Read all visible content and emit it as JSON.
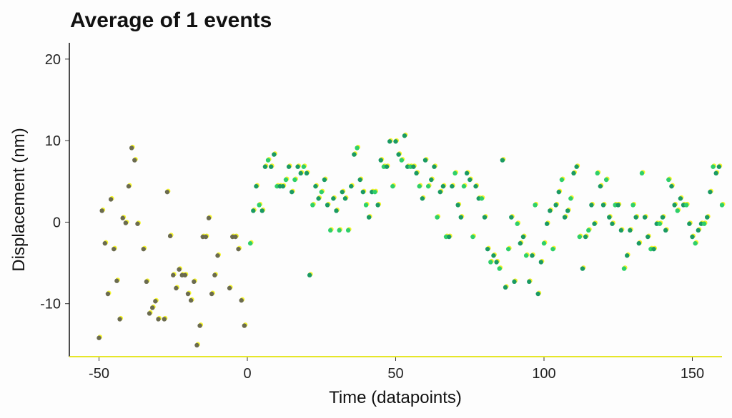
{
  "chart_data": {
    "type": "scatter",
    "title": "Average of 1 events",
    "xlabel": "Time (datapoints)",
    "ylabel": "Displacement (nm)",
    "xlim": [
      -60,
      160
    ],
    "ylim": [
      -16.5,
      22
    ],
    "x_ticks": [
      -50,
      0,
      50,
      100,
      150
    ],
    "x_tick_labels": [
      "-50",
      "0",
      "50",
      "100",
      "150"
    ],
    "y_ticks": [
      -10,
      0,
      10,
      20
    ],
    "y_tick_labels": [
      "-10",
      "0",
      "10",
      "20"
    ],
    "grid": false,
    "legend": "none",
    "colors": {
      "before_event": "#6b6b4f",
      "after_event_dark": "#1a9a63",
      "after_event_light": "#2ecf6a",
      "highlight": "#f5f52a",
      "x_axis_line": "#e6e62a",
      "y_axis_line": "#111111"
    },
    "points": [
      {
        "x": -50,
        "y": -14.2
      },
      {
        "x": -49,
        "y": 1.4
      },
      {
        "x": -48,
        "y": -2.6
      },
      {
        "x": -47,
        "y": -8.8
      },
      {
        "x": -46,
        "y": 2.8
      },
      {
        "x": -45,
        "y": -3.3
      },
      {
        "x": -44,
        "y": -7.2
      },
      {
        "x": -43,
        "y": -11.9
      },
      {
        "x": -42,
        "y": 0.5
      },
      {
        "x": -41,
        "y": -0.1
      },
      {
        "x": -40,
        "y": 4.4
      },
      {
        "x": -39,
        "y": 9.1
      },
      {
        "x": -38,
        "y": 7.6
      },
      {
        "x": -37,
        "y": -0.2
      },
      {
        "x": -35,
        "y": -3.3
      },
      {
        "x": -34,
        "y": -7.3
      },
      {
        "x": -33,
        "y": -11.2
      },
      {
        "x": -32,
        "y": -10.5
      },
      {
        "x": -31,
        "y": -9.7
      },
      {
        "x": -30,
        "y": -11.9
      },
      {
        "x": -28,
        "y": -11.9
      },
      {
        "x": -27,
        "y": 3.7
      },
      {
        "x": -26,
        "y": -1.7
      },
      {
        "x": -25,
        "y": -6.5
      },
      {
        "x": -24,
        "y": -8.1
      },
      {
        "x": -23,
        "y": -5.8
      },
      {
        "x": -22,
        "y": -6.5
      },
      {
        "x": -21,
        "y": -6.5
      },
      {
        "x": -20,
        "y": -8.8
      },
      {
        "x": -19,
        "y": -9.6
      },
      {
        "x": -18,
        "y": -7.3
      },
      {
        "x": -17,
        "y": -15.1
      },
      {
        "x": -16,
        "y": -12.7
      },
      {
        "x": -15,
        "y": -1.8
      },
      {
        "x": -14,
        "y": -1.8
      },
      {
        "x": -13,
        "y": 0.5
      },
      {
        "x": -12,
        "y": -8.8
      },
      {
        "x": -11,
        "y": -6.5
      },
      {
        "x": -10,
        "y": -4.1
      },
      {
        "x": -6,
        "y": -8.1
      },
      {
        "x": -5,
        "y": -1.8
      },
      {
        "x": -4,
        "y": -1.8
      },
      {
        "x": -3,
        "y": -3.3
      },
      {
        "x": -2,
        "y": -9.6
      },
      {
        "x": -1,
        "y": -12.7
      },
      {
        "x": 1,
        "y": -2.6
      },
      {
        "x": 2,
        "y": 1.4
      },
      {
        "x": 3,
        "y": 4.4
      },
      {
        "x": 4,
        "y": 2.1
      },
      {
        "x": 5,
        "y": 1.4
      },
      {
        "x": 6,
        "y": 6.8
      },
      {
        "x": 7,
        "y": 7.6
      },
      {
        "x": 8,
        "y": 6.8
      },
      {
        "x": 9,
        "y": 8.3
      },
      {
        "x": 10,
        "y": 4.4
      },
      {
        "x": 11,
        "y": 4.4
      },
      {
        "x": 12,
        "y": 4.4
      },
      {
        "x": 13,
        "y": 5.2
      },
      {
        "x": 14,
        "y": 6.8
      },
      {
        "x": 15,
        "y": 3.7
      },
      {
        "x": 16,
        "y": 5.2
      },
      {
        "x": 17,
        "y": 6.8
      },
      {
        "x": 18,
        "y": 6.0
      },
      {
        "x": 19,
        "y": 6.8
      },
      {
        "x": 20,
        "y": 6.0
      },
      {
        "x": 21,
        "y": -6.5
      },
      {
        "x": 22,
        "y": 2.1
      },
      {
        "x": 23,
        "y": 4.4
      },
      {
        "x": 24,
        "y": 2.9
      },
      {
        "x": 25,
        "y": 3.7
      },
      {
        "x": 26,
        "y": 5.2
      },
      {
        "x": 27,
        "y": 2.1
      },
      {
        "x": 28,
        "y": -1.0
      },
      {
        "x": 29,
        "y": 2.9
      },
      {
        "x": 30,
        "y": 1.4
      },
      {
        "x": 31,
        "y": -1.0
      },
      {
        "x": 32,
        "y": 3.7
      },
      {
        "x": 33,
        "y": 2.9
      },
      {
        "x": 34,
        "y": -1.0
      },
      {
        "x": 35,
        "y": 4.4
      },
      {
        "x": 36,
        "y": 8.3
      },
      {
        "x": 37,
        "y": 9.1
      },
      {
        "x": 38,
        "y": 5.2
      },
      {
        "x": 39,
        "y": 3.7
      },
      {
        "x": 40,
        "y": 2.1
      },
      {
        "x": 41,
        "y": 0.6
      },
      {
        "x": 42,
        "y": 3.7
      },
      {
        "x": 43,
        "y": 3.7
      },
      {
        "x": 44,
        "y": 2.1
      },
      {
        "x": 45,
        "y": 7.6
      },
      {
        "x": 46,
        "y": 6.8
      },
      {
        "x": 47,
        "y": 6.8
      },
      {
        "x": 48,
        "y": 9.9
      },
      {
        "x": 49,
        "y": 4.4
      },
      {
        "x": 50,
        "y": 9.9
      },
      {
        "x": 51,
        "y": 8.3
      },
      {
        "x": 52,
        "y": 7.6
      },
      {
        "x": 53,
        "y": 10.6
      },
      {
        "x": 54,
        "y": 6.8
      },
      {
        "x": 55,
        "y": 6.8
      },
      {
        "x": 56,
        "y": 6.8
      },
      {
        "x": 57,
        "y": 6.0
      },
      {
        "x": 58,
        "y": 4.4
      },
      {
        "x": 59,
        "y": 2.9
      },
      {
        "x": 60,
        "y": 7.6
      },
      {
        "x": 61,
        "y": 4.4
      },
      {
        "x": 62,
        "y": 5.2
      },
      {
        "x": 63,
        "y": 6.8
      },
      {
        "x": 64,
        "y": 0.6
      },
      {
        "x": 65,
        "y": 3.7
      },
      {
        "x": 66,
        "y": 4.4
      },
      {
        "x": 67,
        "y": -1.8
      },
      {
        "x": 68,
        "y": -1.8
      },
      {
        "x": 69,
        "y": 4.4
      },
      {
        "x": 70,
        "y": 6.0
      },
      {
        "x": 71,
        "y": 2.1
      },
      {
        "x": 72,
        "y": 0.6
      },
      {
        "x": 73,
        "y": 4.4
      },
      {
        "x": 74,
        "y": 6.0
      },
      {
        "x": 75,
        "y": 5.2
      },
      {
        "x": 76,
        "y": -1.8
      },
      {
        "x": 77,
        "y": 4.4
      },
      {
        "x": 78,
        "y": 2.9
      },
      {
        "x": 79,
        "y": 2.9
      },
      {
        "x": 80,
        "y": 0.6
      },
      {
        "x": 81,
        "y": -3.3
      },
      {
        "x": 82,
        "y": -4.9
      },
      {
        "x": 83,
        "y": -4.1
      },
      {
        "x": 84,
        "y": -4.9
      },
      {
        "x": 85,
        "y": -5.7
      },
      {
        "x": 86,
        "y": 7.6
      },
      {
        "x": 87,
        "y": -8.0
      },
      {
        "x": 88,
        "y": -3.3
      },
      {
        "x": 89,
        "y": 0.6
      },
      {
        "x": 90,
        "y": -7.3
      },
      {
        "x": 91,
        "y": -0.2
      },
      {
        "x": 92,
        "y": -2.6
      },
      {
        "x": 93,
        "y": -1.8
      },
      {
        "x": 94,
        "y": -4.1
      },
      {
        "x": 95,
        "y": -7.3
      },
      {
        "x": 96,
        "y": -4.1
      },
      {
        "x": 97,
        "y": 2.1
      },
      {
        "x": 98,
        "y": -8.8
      },
      {
        "x": 99,
        "y": -4.9
      },
      {
        "x": 100,
        "y": -2.6
      },
      {
        "x": 101,
        "y": -0.2
      },
      {
        "x": 102,
        "y": 1.4
      },
      {
        "x": 103,
        "y": -3.3
      },
      {
        "x": 104,
        "y": 2.1
      },
      {
        "x": 105,
        "y": 3.7
      },
      {
        "x": 106,
        "y": 5.2
      },
      {
        "x": 107,
        "y": 0.6
      },
      {
        "x": 108,
        "y": 1.4
      },
      {
        "x": 109,
        "y": 2.9
      },
      {
        "x": 110,
        "y": 6.0
      },
      {
        "x": 111,
        "y": 6.8
      },
      {
        "x": 112,
        "y": -1.8
      },
      {
        "x": 113,
        "y": -5.7
      },
      {
        "x": 114,
        "y": -1.8
      },
      {
        "x": 115,
        "y": -1.0
      },
      {
        "x": 116,
        "y": 2.1
      },
      {
        "x": 117,
        "y": -0.2
      },
      {
        "x": 118,
        "y": 6.0
      },
      {
        "x": 119,
        "y": 4.4
      },
      {
        "x": 120,
        "y": 2.1
      },
      {
        "x": 121,
        "y": 5.2
      },
      {
        "x": 122,
        "y": 0.6
      },
      {
        "x": 123,
        "y": -0.2
      },
      {
        "x": 124,
        "y": 2.1
      },
      {
        "x": 125,
        "y": 2.1
      },
      {
        "x": 126,
        "y": -1.0
      },
      {
        "x": 127,
        "y": -5.7
      },
      {
        "x": 128,
        "y": -4.1
      },
      {
        "x": 129,
        "y": -1.0
      },
      {
        "x": 130,
        "y": 2.1
      },
      {
        "x": 131,
        "y": 0.6
      },
      {
        "x": 132,
        "y": -2.6
      },
      {
        "x": 133,
        "y": 6.0
      },
      {
        "x": 134,
        "y": 0.6
      },
      {
        "x": 135,
        "y": -1.8
      },
      {
        "x": 136,
        "y": -3.3
      },
      {
        "x": 137,
        "y": -3.3
      },
      {
        "x": 138,
        "y": -0.2
      },
      {
        "x": 139,
        "y": -0.2
      },
      {
        "x": 140,
        "y": 0.6
      },
      {
        "x": 141,
        "y": -1.0
      },
      {
        "x": 142,
        "y": 5.2
      },
      {
        "x": 143,
        "y": 4.4
      },
      {
        "x": 144,
        "y": 2.1
      },
      {
        "x": 145,
        "y": 1.4
      },
      {
        "x": 146,
        "y": 2.9
      },
      {
        "x": 147,
        "y": 2.1
      },
      {
        "x": 148,
        "y": 2.1
      },
      {
        "x": 149,
        "y": -0.2
      },
      {
        "x": 150,
        "y": -1.8
      },
      {
        "x": 151,
        "y": -2.6
      },
      {
        "x": 152,
        "y": -1.0
      },
      {
        "x": 153,
        "y": -0.2
      },
      {
        "x": 154,
        "y": -0.2
      },
      {
        "x": 155,
        "y": 0.6
      },
      {
        "x": 156,
        "y": 3.7
      },
      {
        "x": 157,
        "y": 6.8
      },
      {
        "x": 158,
        "y": 6.0
      },
      {
        "x": 159,
        "y": 6.8
      },
      {
        "x": 160,
        "y": 2.1
      }
    ]
  }
}
